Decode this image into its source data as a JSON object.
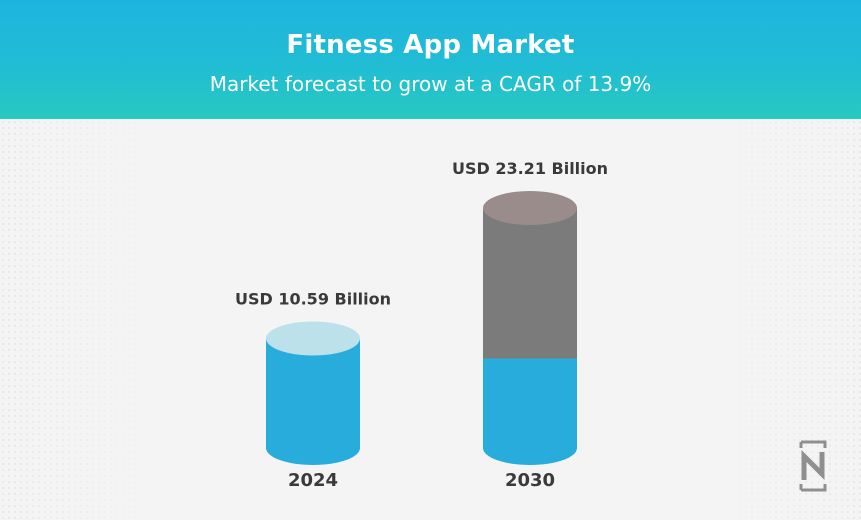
{
  "header": {
    "title": "Fitness App Market",
    "subtitle": "Market forecast to grow at a CAGR of 13.9%"
  },
  "chart_data": {
    "type": "bar",
    "title": "Fitness App Market",
    "subtitle": "Market forecast to grow at a CAGR of 13.9%",
    "categories": [
      "2024",
      "2030"
    ],
    "values": [
      10.59,
      23.21
    ],
    "value_labels": [
      "USD 10.59 Billion",
      "USD 23.21 Billion"
    ],
    "units": "USD Billion",
    "xlabel": "",
    "ylabel": "",
    "ylim": [
      0,
      23.21
    ],
    "grid": false,
    "legend": "none"
  },
  "colors": {
    "header_top": "#1fb4e0",
    "header_bottom": "#27c9c0",
    "bar_fill": "#27acdc",
    "bar_top": "#bde1ea",
    "growth_fill": "#7b7b7b",
    "growth_top": "#9b8c8c",
    "background": "#f4f4f4",
    "label_text": "#3a3a3a"
  },
  "logo": {
    "icon": "brand-logo-icon"
  }
}
